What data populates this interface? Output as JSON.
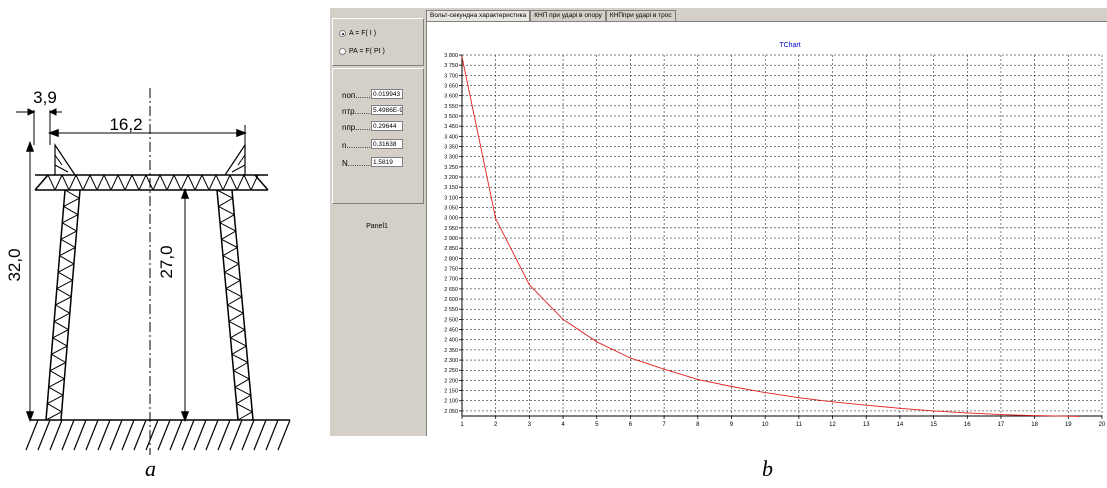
{
  "tower": {
    "dim_top_small": "3,9",
    "dim_top_span": "16,2",
    "dim_total_height": "32,0",
    "dim_crossarm_height": "27,0",
    "caption": "a"
  },
  "caption_b": "b",
  "app": {
    "radio_options": [
      {
        "label": "A = F( I )",
        "selected": true
      },
      {
        "label": "PA = F( PI )",
        "selected": false
      }
    ],
    "fields": [
      {
        "label": "nоп........",
        "value": "0.019943"
      },
      {
        "label": "nтр........",
        "value": "5.4986E-9"
      },
      {
        "label": "nпр........",
        "value": "0.29644"
      },
      {
        "label": "n..............",
        "value": "0.31638"
      },
      {
        "label": "N...............",
        "value": "1.5819"
      }
    ],
    "panel_label": "Panel1",
    "tabs": [
      {
        "label": "Вольт-секундна характеристика",
        "active": true
      },
      {
        "label": "КНП при ударі в опору",
        "active": false
      },
      {
        "label": "КНПпри ударі в трос",
        "active": false
      }
    ]
  },
  "chart_data": {
    "type": "line",
    "title": "TChart",
    "xlabel": "",
    "ylabel": "",
    "xlim": [
      1,
      20
    ],
    "ylim": [
      2025,
      3800
    ],
    "x_ticks": [
      1,
      2,
      3,
      4,
      5,
      6,
      7,
      8,
      9,
      10,
      11,
      12,
      13,
      14,
      15,
      16,
      17,
      18,
      19,
      20
    ],
    "y_ticks": [
      2050,
      2100,
      2150,
      2200,
      2250,
      2300,
      2350,
      2400,
      2450,
      2500,
      2550,
      2600,
      2650,
      2700,
      2750,
      2800,
      2850,
      2900,
      2950,
      3000,
      3050,
      3100,
      3150,
      3200,
      3250,
      3300,
      3350,
      3400,
      3450,
      3500,
      3550,
      3600,
      3650,
      3700,
      3750,
      3800
    ],
    "y_tick_labels": [
      "2 050",
      "2 100",
      "2 150",
      "2 200",
      "2 250",
      "2 300",
      "2 350",
      "2 400",
      "2 450",
      "2 500",
      "2 550",
      "2 600",
      "2 650",
      "2 700",
      "2 750",
      "2 800",
      "2 850",
      "2 900",
      "2 950",
      "3 000",
      "3 050",
      "3 100",
      "3 150",
      "3 200",
      "3 250",
      "3 300",
      "3 350",
      "3 400",
      "3 450",
      "3 500",
      "3 550",
      "3 600",
      "3 650",
      "3 700",
      "3 750",
      "3 800"
    ],
    "grid": true,
    "series": [
      {
        "color": "#e02020",
        "x": [
          1,
          2,
          3,
          4,
          5,
          6,
          7,
          8,
          9,
          10,
          11,
          12,
          13,
          14,
          15,
          16,
          17,
          18,
          19,
          19.3
        ],
        "y": [
          3790,
          2995,
          2670,
          2500,
          2390,
          2310,
          2255,
          2205,
          2170,
          2140,
          2115,
          2095,
          2078,
          2063,
          2050,
          2040,
          2032,
          2027,
          2024,
          2023
        ]
      }
    ],
    "colors": {
      "title": "#0000cc",
      "grid": "#000000",
      "axis": "#000000"
    }
  }
}
